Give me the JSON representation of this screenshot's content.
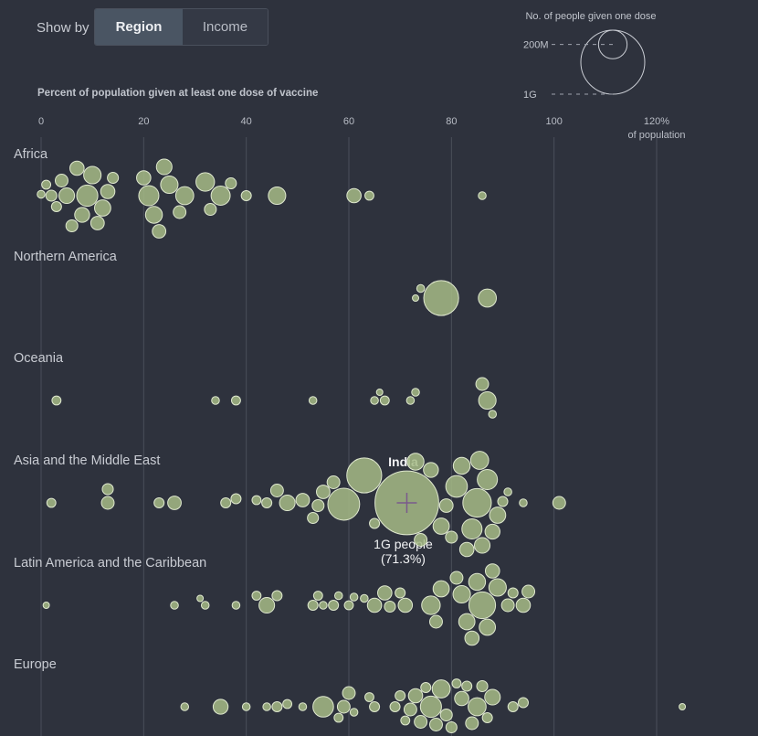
{
  "controls": {
    "show_by_label": "Show by",
    "options": [
      "Region",
      "Income"
    ],
    "selected": "Region"
  },
  "axis_title": "Percent of population given at least one dose of vaccine",
  "legend": {
    "title": "No. of people given one dose",
    "sizes": [
      {
        "label": "200M",
        "value_people": 200000000
      },
      {
        "label": "1G",
        "value_people": 1000000000
      }
    ]
  },
  "colors": {
    "background": "#2e323d",
    "bubble_fill": "#a6bb86",
    "bubble_stroke": "#dfe8cf",
    "gridline": "#4a4f5a",
    "crosshair": "#7a5a8c"
  },
  "highlight": {
    "name": "India",
    "people_label": "1G people",
    "percent_label": "(71.3%)",
    "percent": 71.3
  },
  "chart_data": {
    "type": "beeswarm",
    "xlabel": "Percent of population given at least one dose of vaccine",
    "x_ticks": [
      "0",
      "20",
      "40",
      "60",
      "80",
      "100",
      "120%"
    ],
    "x_tick_values": [
      0,
      20,
      40,
      60,
      80,
      100,
      120
    ],
    "x_unit_note": "of population",
    "xlim": [
      0,
      120
    ],
    "size_encoding": "No. of people given one dose",
    "regions": [
      {
        "name": "Africa",
        "points": [
          [
            0,
            0.3
          ],
          [
            1,
            0.4
          ],
          [
            2,
            0.6
          ],
          [
            3,
            0.5
          ],
          [
            4,
            0.8
          ],
          [
            5,
            1.2
          ],
          [
            6,
            0.7
          ],
          [
            7,
            1.0
          ],
          [
            8,
            1.1
          ],
          [
            9,
            2.2
          ],
          [
            10,
            1.5
          ],
          [
            11,
            0.9
          ],
          [
            12,
            1.3
          ],
          [
            13,
            1.0
          ],
          [
            14,
            0.6
          ],
          [
            20,
            1.0
          ],
          [
            21,
            2.0
          ],
          [
            22,
            1.4
          ],
          [
            23,
            0.9
          ],
          [
            24,
            1.2
          ],
          [
            25,
            1.5
          ],
          [
            27,
            0.8
          ],
          [
            28,
            1.6
          ],
          [
            32,
            1.7
          ],
          [
            33,
            0.7
          ],
          [
            35,
            1.8
          ],
          [
            37,
            0.6
          ],
          [
            40,
            0.5
          ],
          [
            46,
            1.5
          ],
          [
            61,
            1.0
          ],
          [
            64,
            0.4
          ],
          [
            86,
            0.3
          ]
        ]
      },
      {
        "name": "Northern America",
        "points": [
          [
            73,
            0.2
          ],
          [
            74,
            0.3
          ],
          [
            78,
            6.0
          ],
          [
            87,
            1.6
          ]
        ]
      },
      {
        "name": "Oceania",
        "points": [
          [
            3,
            0.4
          ],
          [
            34,
            0.3
          ],
          [
            38,
            0.4
          ],
          [
            53,
            0.3
          ],
          [
            65,
            0.3
          ],
          [
            66,
            0.2
          ],
          [
            67,
            0.4
          ],
          [
            72,
            0.3
          ],
          [
            73,
            0.3
          ],
          [
            86,
            0.8
          ],
          [
            87,
            1.5
          ],
          [
            88,
            0.3
          ]
        ]
      },
      {
        "name": "Asia and the Middle East",
        "points": [
          [
            2,
            0.4
          ],
          [
            13,
            0.6
          ],
          [
            13,
            0.8
          ],
          [
            23,
            0.5
          ],
          [
            26,
            0.9
          ],
          [
            36,
            0.5
          ],
          [
            38,
            0.5
          ],
          [
            42,
            0.4
          ],
          [
            44,
            0.5
          ],
          [
            46,
            0.8
          ],
          [
            48,
            1.2
          ],
          [
            51,
            0.9
          ],
          [
            53,
            0.6
          ],
          [
            54,
            0.7
          ],
          [
            55,
            0.9
          ],
          [
            57,
            0.8
          ],
          [
            59,
            5.0
          ],
          [
            63,
            6.0
          ],
          [
            65,
            0.5
          ],
          [
            71.3,
            20.0
          ],
          [
            73,
            1.4
          ],
          [
            74,
            0.8
          ],
          [
            76,
            1.1
          ],
          [
            78,
            1.3
          ],
          [
            79,
            0.9
          ],
          [
            80,
            0.7
          ],
          [
            81,
            2.3
          ],
          [
            82,
            1.4
          ],
          [
            83,
            1.0
          ],
          [
            84,
            2.0
          ],
          [
            85,
            4.0
          ],
          [
            85.5,
            1.6
          ],
          [
            86,
            1.2
          ],
          [
            87,
            2.0
          ],
          [
            88,
            1.1
          ],
          [
            89,
            1.3
          ],
          [
            90,
            0.5
          ],
          [
            91,
            0.3
          ],
          [
            94,
            0.3
          ],
          [
            101,
            0.8
          ]
        ]
      },
      {
        "name": "Latin America and the Caribbean",
        "points": [
          [
            1,
            0.2
          ],
          [
            26,
            0.3
          ],
          [
            31,
            0.2
          ],
          [
            32,
            0.3
          ],
          [
            38,
            0.3
          ],
          [
            42,
            0.4
          ],
          [
            44,
            1.2
          ],
          [
            46,
            0.5
          ],
          [
            53,
            0.5
          ],
          [
            54,
            0.4
          ],
          [
            55,
            0.3
          ],
          [
            57,
            0.5
          ],
          [
            58,
            0.3
          ],
          [
            60,
            0.4
          ],
          [
            61,
            0.3
          ],
          [
            63,
            0.3
          ],
          [
            65,
            1.0
          ],
          [
            67,
            1.0
          ],
          [
            68,
            0.6
          ],
          [
            70,
            0.5
          ],
          [
            71,
            1.0
          ],
          [
            76,
            1.7
          ],
          [
            77,
            0.8
          ],
          [
            78,
            1.3
          ],
          [
            81,
            0.8
          ],
          [
            82,
            1.5
          ],
          [
            83,
            1.3
          ],
          [
            84,
            1.0
          ],
          [
            85,
            1.4
          ],
          [
            86,
            3.5
          ],
          [
            87,
            1.3
          ],
          [
            88,
            1.0
          ],
          [
            89,
            1.5
          ],
          [
            91,
            0.8
          ],
          [
            92,
            0.5
          ],
          [
            94,
            1.0
          ],
          [
            95,
            0.8
          ]
        ]
      },
      {
        "name": "Europe",
        "points": [
          [
            28,
            0.3
          ],
          [
            35,
            1.1
          ],
          [
            40,
            0.3
          ],
          [
            44,
            0.3
          ],
          [
            46,
            0.5
          ],
          [
            48,
            0.4
          ],
          [
            51,
            0.3
          ],
          [
            55,
            2.1
          ],
          [
            58,
            0.4
          ],
          [
            59,
            0.8
          ],
          [
            60,
            0.8
          ],
          [
            61,
            0.3
          ],
          [
            64,
            0.4
          ],
          [
            65,
            0.5
          ],
          [
            69,
            0.5
          ],
          [
            70,
            0.5
          ],
          [
            71,
            0.4
          ],
          [
            72,
            0.8
          ],
          [
            73,
            1.0
          ],
          [
            74,
            0.8
          ],
          [
            75,
            0.5
          ],
          [
            76,
            2.2
          ],
          [
            77,
            0.8
          ],
          [
            78,
            1.6
          ],
          [
            79,
            0.7
          ],
          [
            80,
            0.6
          ],
          [
            81,
            0.4
          ],
          [
            82,
            1.0
          ],
          [
            83,
            0.5
          ],
          [
            84,
            0.8
          ],
          [
            85,
            1.6
          ],
          [
            86,
            0.6
          ],
          [
            87,
            0.5
          ],
          [
            88,
            1.2
          ],
          [
            92,
            0.5
          ],
          [
            94,
            0.5
          ],
          [
            125,
            0.2
          ]
        ]
      }
    ]
  }
}
